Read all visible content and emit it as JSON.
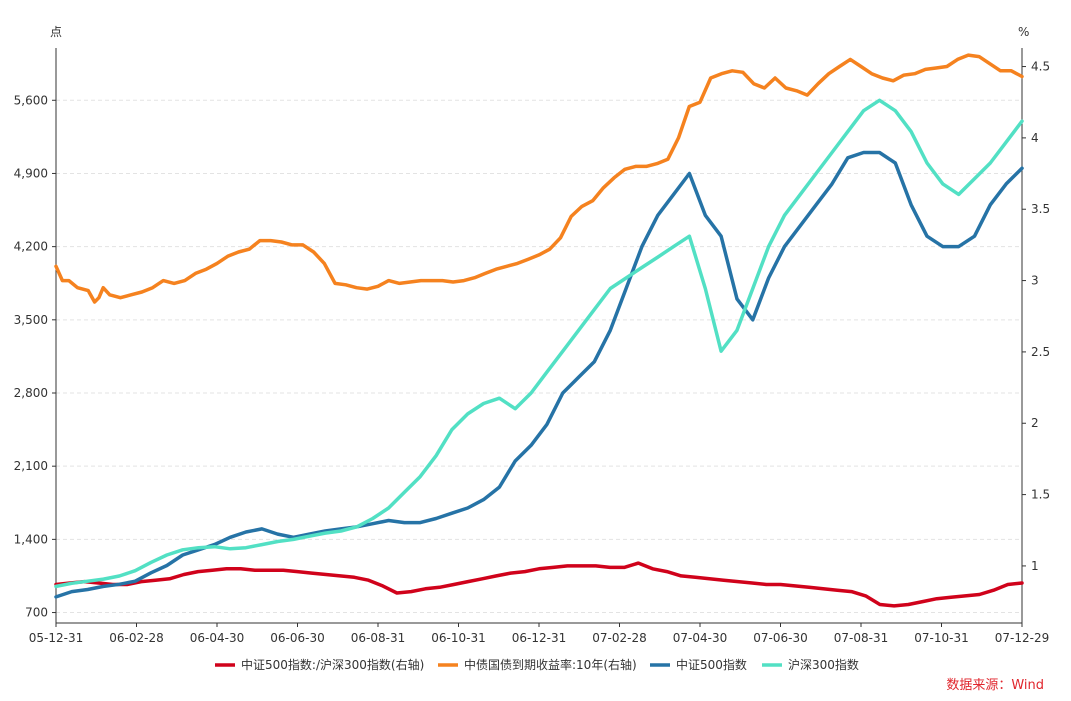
{
  "chart_data": {
    "type": "line",
    "units": {
      "left": "点",
      "right": "%"
    },
    "x_ticks": [
      "05-12-31",
      "06-02-28",
      "06-04-30",
      "06-06-30",
      "06-08-31",
      "06-10-31",
      "06-12-31",
      "07-02-28",
      "07-04-30",
      "07-06-30",
      "07-08-31",
      "07-10-31",
      "07-12-29"
    ],
    "y_left": {
      "min": 600,
      "max": 6100,
      "ticks": [
        700,
        1400,
        2100,
        2800,
        3500,
        4200,
        4900,
        5600
      ],
      "tick_labels": [
        "700",
        "1,400",
        "2,100",
        "2,800",
        "3,500",
        "4,200",
        "4,900",
        "5,600"
      ]
    },
    "y_right": {
      "min": 0.6,
      "max": 4.63,
      "ticks": [
        1,
        1.5,
        2,
        2.5,
        3,
        3.5,
        4,
        4.5
      ],
      "tick_labels": [
        "1",
        "1.5",
        "2",
        "2.5",
        "3",
        "3.5",
        "4",
        "4.5"
      ]
    },
    "grid": true,
    "legend_position": "bottom",
    "source": "数据来源：Wind",
    "series": [
      {
        "name": "中证500指数:/沪深300指数(右轴)",
        "axis": "right",
        "color": "#d0021b",
        "points": [
          [
            0,
            0.87
          ],
          [
            0.5,
            0.88
          ],
          [
            1,
            0.89
          ],
          [
            1.5,
            0.88
          ],
          [
            2,
            0.87
          ],
          [
            2.5,
            0.87
          ],
          [
            3,
            0.89
          ],
          [
            3.5,
            0.9
          ],
          [
            4,
            0.91
          ],
          [
            4.5,
            0.94
          ],
          [
            5,
            0.96
          ],
          [
            5.5,
            0.97
          ],
          [
            6,
            0.98
          ],
          [
            6.5,
            0.98
          ],
          [
            7,
            0.97
          ],
          [
            7.5,
            0.97
          ],
          [
            8,
            0.97
          ],
          [
            8.5,
            0.96
          ],
          [
            9,
            0.95
          ],
          [
            9.5,
            0.94
          ],
          [
            10,
            0.93
          ],
          [
            10.5,
            0.92
          ],
          [
            11,
            0.9
          ],
          [
            11.5,
            0.86
          ],
          [
            12,
            0.81
          ],
          [
            12.5,
            0.82
          ],
          [
            13,
            0.84
          ],
          [
            13.5,
            0.85
          ],
          [
            14,
            0.87
          ],
          [
            14.5,
            0.89
          ],
          [
            15,
            0.91
          ],
          [
            15.5,
            0.93
          ],
          [
            16,
            0.95
          ],
          [
            16.5,
            0.96
          ],
          [
            17,
            0.98
          ],
          [
            17.5,
            0.99
          ],
          [
            18,
            1.0
          ],
          [
            18.5,
            1.0
          ],
          [
            19,
            1.0
          ],
          [
            19.5,
            0.99
          ],
          [
            20,
            0.99
          ],
          [
            20.5,
            1.02
          ],
          [
            21,
            0.98
          ],
          [
            21.5,
            0.96
          ],
          [
            22,
            0.93
          ],
          [
            22.5,
            0.92
          ],
          [
            23,
            0.91
          ],
          [
            23.5,
            0.9
          ],
          [
            24,
            0.89
          ],
          [
            24.5,
            0.88
          ],
          [
            25,
            0.87
          ],
          [
            25.5,
            0.87
          ],
          [
            26,
            0.86
          ],
          [
            26.5,
            0.85
          ],
          [
            27,
            0.84
          ],
          [
            27.5,
            0.83
          ],
          [
            28,
            0.82
          ],
          [
            28.5,
            0.79
          ],
          [
            29,
            0.73
          ],
          [
            29.5,
            0.72
          ],
          [
            30,
            0.73
          ],
          [
            30.5,
            0.75
          ],
          [
            31,
            0.77
          ],
          [
            31.5,
            0.78
          ],
          [
            32,
            0.79
          ],
          [
            32.5,
            0.8
          ],
          [
            33,
            0.83
          ],
          [
            33.5,
            0.87
          ],
          [
            34,
            0.88
          ]
        ]
      },
      {
        "name": "中债国债到期收益率:10年(右轴)",
        "axis": "right",
        "color": "#f5821f",
        "points": [
          [
            0,
            3.1
          ],
          [
            0.3,
            3.0
          ],
          [
            0.6,
            3.0
          ],
          [
            1,
            2.95
          ],
          [
            1.5,
            2.93
          ],
          [
            1.8,
            2.85
          ],
          [
            2,
            2.88
          ],
          [
            2.2,
            2.95
          ],
          [
            2.5,
            2.9
          ],
          [
            3,
            2.88
          ],
          [
            3.5,
            2.9
          ],
          [
            4,
            2.92
          ],
          [
            4.5,
            2.95
          ],
          [
            5,
            3.0
          ],
          [
            5.5,
            2.98
          ],
          [
            6,
            3.0
          ],
          [
            6.5,
            3.05
          ],
          [
            7,
            3.08
          ],
          [
            7.5,
            3.12
          ],
          [
            8,
            3.17
          ],
          [
            8.5,
            3.2
          ],
          [
            9,
            3.22
          ],
          [
            9.5,
            3.28
          ],
          [
            10,
            3.28
          ],
          [
            10.5,
            3.27
          ],
          [
            11,
            3.25
          ],
          [
            11.5,
            3.25
          ],
          [
            12,
            3.2
          ],
          [
            12.5,
            3.12
          ],
          [
            13,
            2.98
          ],
          [
            13.5,
            2.97
          ],
          [
            14,
            2.95
          ],
          [
            14.5,
            2.94
          ],
          [
            15,
            2.96
          ],
          [
            15.5,
            3.0
          ],
          [
            16,
            2.98
          ],
          [
            16.5,
            2.99
          ],
          [
            17,
            3.0
          ],
          [
            17.5,
            3.0
          ],
          [
            18,
            3.0
          ],
          [
            18.5,
            2.99
          ],
          [
            19,
            3.0
          ],
          [
            19.5,
            3.02
          ],
          [
            20,
            3.05
          ],
          [
            20.5,
            3.08
          ],
          [
            21,
            3.1
          ],
          [
            21.5,
            3.12
          ],
          [
            22,
            3.15
          ],
          [
            22.5,
            3.18
          ],
          [
            23,
            3.22
          ],
          [
            23.5,
            3.3
          ],
          [
            24,
            3.45
          ],
          [
            24.5,
            3.52
          ],
          [
            25,
            3.56
          ],
          [
            25.5,
            3.65
          ],
          [
            26,
            3.72
          ],
          [
            26.5,
            3.78
          ],
          [
            27,
            3.8
          ],
          [
            27.5,
            3.8
          ],
          [
            28,
            3.82
          ],
          [
            28.5,
            3.85
          ],
          [
            29,
            4.0
          ],
          [
            29.5,
            4.22
          ],
          [
            30,
            4.25
          ],
          [
            30.5,
            4.42
          ],
          [
            31,
            4.45
          ],
          [
            31.5,
            4.47
          ],
          [
            32,
            4.46
          ],
          [
            32.5,
            4.38
          ],
          [
            33,
            4.35
          ],
          [
            33.5,
            4.42
          ],
          [
            34,
            4.35
          ],
          [
            34.5,
            4.33
          ],
          [
            35,
            4.3
          ],
          [
            35.5,
            4.38
          ],
          [
            36,
            4.45
          ],
          [
            36.5,
            4.5
          ],
          [
            37,
            4.55
          ],
          [
            37.5,
            4.5
          ],
          [
            38,
            4.45
          ],
          [
            38.5,
            4.42
          ],
          [
            39,
            4.4
          ],
          [
            39.5,
            4.44
          ],
          [
            40,
            4.45
          ],
          [
            40.5,
            4.48
          ],
          [
            41,
            4.49
          ],
          [
            41.5,
            4.5
          ],
          [
            42,
            4.55
          ],
          [
            42.5,
            4.58
          ],
          [
            43,
            4.57
          ],
          [
            43.5,
            4.52
          ],
          [
            44,
            4.47
          ],
          [
            44.5,
            4.47
          ],
          [
            45,
            4.43
          ]
        ]
      },
      {
        "name": "中证500指数",
        "axis": "left",
        "color": "#2673a6",
        "points": [
          [
            0,
            850
          ],
          [
            1,
            900
          ],
          [
            2,
            920
          ],
          [
            3,
            950
          ],
          [
            4,
            970
          ],
          [
            5,
            1000
          ],
          [
            6,
            1080
          ],
          [
            7,
            1150
          ],
          [
            8,
            1250
          ],
          [
            9,
            1300
          ],
          [
            10,
            1350
          ],
          [
            11,
            1420
          ],
          [
            12,
            1470
          ],
          [
            13,
            1500
          ],
          [
            14,
            1450
          ],
          [
            15,
            1420
          ],
          [
            16,
            1450
          ],
          [
            17,
            1480
          ],
          [
            18,
            1500
          ],
          [
            19,
            1520
          ],
          [
            20,
            1550
          ],
          [
            21,
            1580
          ],
          [
            22,
            1560
          ],
          [
            23,
            1560
          ],
          [
            24,
            1600
          ],
          [
            25,
            1650
          ],
          [
            26,
            1700
          ],
          [
            27,
            1780
          ],
          [
            28,
            1900
          ],
          [
            29,
            2150
          ],
          [
            30,
            2300
          ],
          [
            31,
            2500
          ],
          [
            32,
            2800
          ],
          [
            33,
            2950
          ],
          [
            34,
            3100
          ],
          [
            35,
            3400
          ],
          [
            36,
            3800
          ],
          [
            37,
            4200
          ],
          [
            38,
            4500
          ],
          [
            39,
            4700
          ],
          [
            40,
            4900
          ],
          [
            41,
            4500
          ],
          [
            42,
            4300
          ],
          [
            43,
            3700
          ],
          [
            44,
            3500
          ],
          [
            45,
            3900
          ],
          [
            46,
            4200
          ],
          [
            47,
            4400
          ],
          [
            48,
            4600
          ],
          [
            49,
            4800
          ],
          [
            50,
            5050
          ],
          [
            51,
            5100
          ],
          [
            52,
            5100
          ],
          [
            53,
            5000
          ],
          [
            54,
            4600
          ],
          [
            55,
            4300
          ],
          [
            56,
            4200
          ],
          [
            57,
            4200
          ],
          [
            58,
            4300
          ],
          [
            59,
            4600
          ],
          [
            60,
            4800
          ],
          [
            61,
            4950
          ]
        ]
      },
      {
        "name": "沪深300指数",
        "axis": "left",
        "color": "#52e0c4",
        "points": [
          [
            0,
            950
          ],
          [
            1,
            980
          ],
          [
            2,
            1000
          ],
          [
            3,
            1020
          ],
          [
            4,
            1050
          ],
          [
            5,
            1100
          ],
          [
            6,
            1180
          ],
          [
            7,
            1250
          ],
          [
            8,
            1300
          ],
          [
            9,
            1320
          ],
          [
            10,
            1330
          ],
          [
            11,
            1310
          ],
          [
            12,
            1320
          ],
          [
            13,
            1350
          ],
          [
            14,
            1380
          ],
          [
            15,
            1400
          ],
          [
            16,
            1430
          ],
          [
            17,
            1460
          ],
          [
            18,
            1480
          ],
          [
            19,
            1520
          ],
          [
            20,
            1600
          ],
          [
            21,
            1700
          ],
          [
            22,
            1850
          ],
          [
            23,
            2000
          ],
          [
            24,
            2200
          ],
          [
            25,
            2450
          ],
          [
            26,
            2600
          ],
          [
            27,
            2700
          ],
          [
            28,
            2750
          ],
          [
            29,
            2650
          ],
          [
            30,
            2800
          ],
          [
            31,
            3000
          ],
          [
            32,
            3200
          ],
          [
            33,
            3400
          ],
          [
            34,
            3600
          ],
          [
            35,
            3800
          ],
          [
            36,
            3900
          ],
          [
            37,
            4000
          ],
          [
            38,
            4100
          ],
          [
            39,
            4200
          ],
          [
            40,
            4300
          ],
          [
            41,
            3800
          ],
          [
            42,
            3200
          ],
          [
            43,
            3400
          ],
          [
            44,
            3800
          ],
          [
            45,
            4200
          ],
          [
            46,
            4500
          ],
          [
            47,
            4700
          ],
          [
            48,
            4900
          ],
          [
            49,
            5100
          ],
          [
            50,
            5300
          ],
          [
            51,
            5500
          ],
          [
            52,
            5600
          ],
          [
            53,
            5500
          ],
          [
            54,
            5300
          ],
          [
            55,
            5000
          ],
          [
            56,
            4800
          ],
          [
            57,
            4700
          ],
          [
            58,
            4850
          ],
          [
            59,
            5000
          ],
          [
            60,
            5200
          ],
          [
            61,
            5400
          ]
        ]
      }
    ]
  }
}
